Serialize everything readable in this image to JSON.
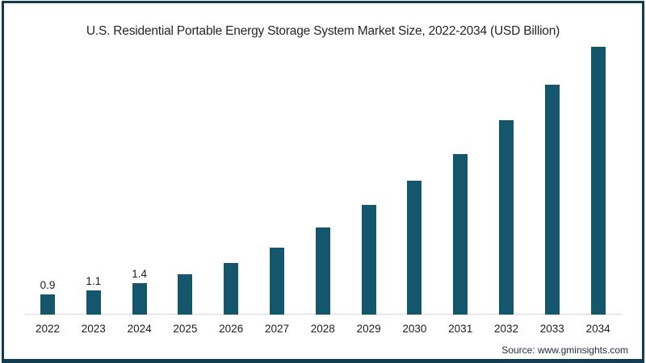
{
  "title": "U.S. Residential Portable Energy Storage System Market Size, 2022-2034 (USD Billion)",
  "source": "Source: www.gminsights.com",
  "colors": {
    "bar": "#14566C",
    "frame": "#123C52",
    "axis_line": "#D9D9D9",
    "text": "#1C1C1C",
    "title_text": "#252525",
    "source_text": "#22313F",
    "background": "#FFFFFF"
  },
  "chart_data": {
    "type": "bar",
    "title": "U.S. Residential Portable Energy Storage System Market Size, 2022-2034 (USD Billion)",
    "unit": "USD Billion",
    "xlabel": "",
    "ylabel": "",
    "categories": [
      "2022",
      "2023",
      "2024",
      "2025",
      "2026",
      "2027",
      "2028",
      "2029",
      "2030",
      "2031",
      "2032",
      "2033",
      "2034"
    ],
    "values": [
      0.9,
      1.1,
      1.4,
      1.8,
      2.3,
      3.0,
      3.9,
      4.9,
      6.0,
      7.2,
      8.7,
      10.3,
      12.0
    ],
    "data_labels": [
      "0.9",
      "1.1",
      "1.4",
      "",
      "",
      "",
      "",
      "",
      "",
      "",
      "",
      "",
      ""
    ],
    "ylim": [
      0,
      12.6
    ],
    "grid": false,
    "legend": false,
    "baseline_axis": "x"
  }
}
